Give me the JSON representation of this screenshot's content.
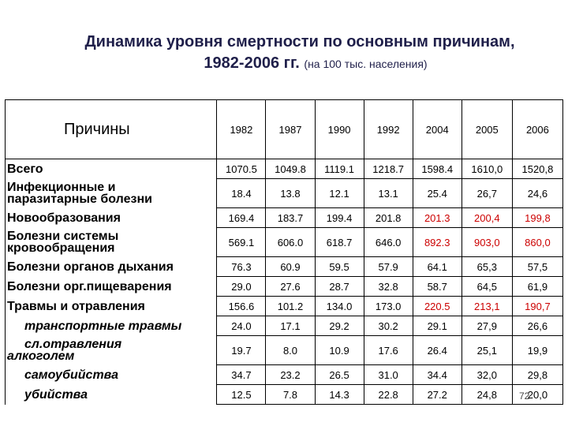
{
  "title": {
    "line1": "Динамика уровня смертности по основным причинам,",
    "line2": "1982-2006 гг.",
    "subtitle": "(на 100 тыс. населения)"
  },
  "table": {
    "header_label": "Причины",
    "years": [
      "1982",
      "1987",
      "1990",
      "1992",
      "2004",
      "2005",
      "2006"
    ],
    "rows": [
      {
        "label": [
          "Всего"
        ],
        "style": "main",
        "tall": false,
        "values": [
          "1070.5",
          "1049.8",
          "1119.1",
          "1218.7",
          "1598.4",
          "1610,0",
          "1520,8"
        ],
        "red": []
      },
      {
        "label": [
          "Инфекционные и",
          "паразитарные болезни"
        ],
        "style": "main",
        "tall": true,
        "values": [
          "18.4",
          "13.8",
          "12.1",
          "13.1",
          "25.4",
          "26,7",
          "24,6"
        ],
        "red": []
      },
      {
        "label": [
          "Новообразования"
        ],
        "style": "main",
        "tall": false,
        "values": [
          "169.4",
          "183.7",
          "199.4",
          "201.8",
          "201.3",
          "200,4",
          "199,8"
        ],
        "red": [
          4,
          5,
          6
        ]
      },
      {
        "label": [
          "Болезни системы",
          "кровообращения"
        ],
        "style": "main",
        "tall": true,
        "values": [
          "569.1",
          "606.0",
          "618.7",
          "646.0",
          "892.3",
          "903,0",
          "860,0"
        ],
        "red": [
          4,
          5,
          6
        ]
      },
      {
        "label": [
          "Болезни органов дыхания"
        ],
        "style": "main",
        "tall": false,
        "values": [
          "76.3",
          "60.9",
          "59.5",
          "57.9",
          "64.1",
          "65,3",
          "57,5"
        ],
        "red": []
      },
      {
        "label": [
          "Болезни орг.пищеварения"
        ],
        "style": "main",
        "tall": false,
        "values": [
          "29.0",
          "27.6",
          "28.7",
          "32.8",
          "58.7",
          "64,5",
          "61,9"
        ],
        "red": []
      },
      {
        "label": [
          "Травмы и отравления"
        ],
        "style": "main",
        "tall": false,
        "values": [
          "156.6",
          "101.2",
          "134.0",
          "173.0",
          "220.5",
          "213,1",
          "190,7"
        ],
        "red": [
          4,
          5,
          6
        ]
      },
      {
        "label": [
          "транспортные травмы"
        ],
        "style": "sub",
        "tall": false,
        "values": [
          "24.0",
          "17.1",
          "29.2",
          "30.2",
          "29.1",
          "27,9",
          "26,6"
        ],
        "red": []
      },
      {
        "label": [
          "сл.отравления",
          "алкоголем"
        ],
        "style": "sub2",
        "tall": true,
        "values": [
          "19.7",
          "8.0",
          "10.9",
          "17.6",
          "26.4",
          "25,1",
          "19,9"
        ],
        "red": []
      },
      {
        "label": [
          "самоубийства"
        ],
        "style": "sub",
        "tall": false,
        "values": [
          "34.7",
          "23.2",
          "26.5",
          "31.0",
          "34.4",
          "32,0",
          "29,8"
        ],
        "red": []
      },
      {
        "label": [
          "убийства"
        ],
        "style": "sub",
        "tall": false,
        "values": [
          "12.5",
          "7.8",
          "14.3",
          "22.8",
          "27.2",
          "24,8",
          "20,0"
        ],
        "red": []
      }
    ]
  },
  "page_number": "72",
  "colors": {
    "title": "#1f1f4a",
    "highlight": "#cc0000"
  }
}
